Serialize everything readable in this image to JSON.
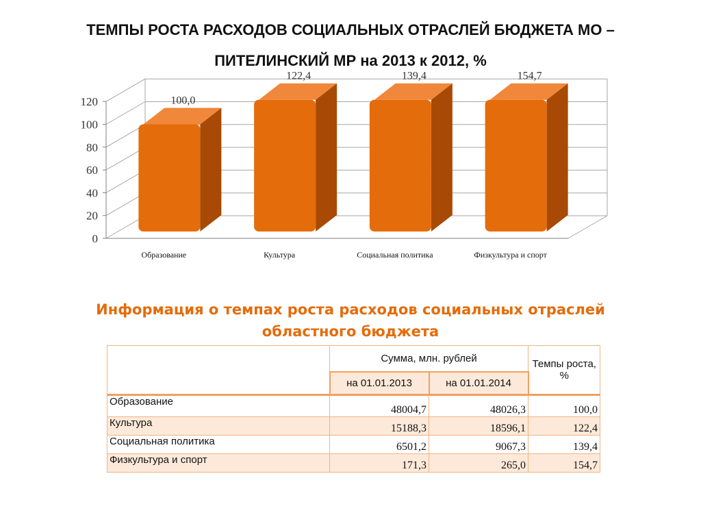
{
  "header": {
    "title_line1": "ТЕМПЫ РОСТА РАСХОДОВ СОЦИАЛЬНЫХ ОТРАСЛЕЙ БЮДЖЕТА МО –",
    "title_line2": "ПИТЕЛИНСКИЙ МР на 2013 к 2012, %"
  },
  "chart_data": {
    "type": "bar",
    "categories": [
      "Образование",
      "Культура",
      "Социальная политика",
      "Физкультура и спорт"
    ],
    "values": [
      100.0,
      122.4,
      139.4,
      154.7
    ],
    "data_labels": [
      "100,0",
      "122,4",
      "139,4",
      "154,7"
    ],
    "yticks": [
      "0",
      "20",
      "40",
      "60",
      "80",
      "100",
      "120"
    ],
    "ylim": [
      0,
      120
    ],
    "grid": true,
    "style": "3d-bar",
    "colors": {
      "front": "#e46c0a",
      "side": "#a84a05",
      "top": "#f0873a"
    }
  },
  "table_section": {
    "title_line1": "Информация о темпах роста расходов социальных отраслей",
    "title_line2": "областного бюджета",
    "header_sum": "Сумма, млн. рублей",
    "header_rate": "Темпы роста, %",
    "header_date1": "на 01.01.2013",
    "header_date2": "на 01.01.2014",
    "rows": [
      {
        "name": "Образование",
        "v2013": "48004,7",
        "v2014": "48026,3",
        "rate": "100,0"
      },
      {
        "name": "Культура",
        "v2013": "15188,3",
        "v2014": "18596,1",
        "rate": "122,4"
      },
      {
        "name": "Социальная политика",
        "v2013": "6501,2",
        "v2014": "9067,3",
        "rate": "139,4"
      },
      {
        "name": "Физкультура и спорт",
        "v2013": "171,3",
        "v2014": "265,0",
        "rate": "154,7"
      }
    ]
  }
}
